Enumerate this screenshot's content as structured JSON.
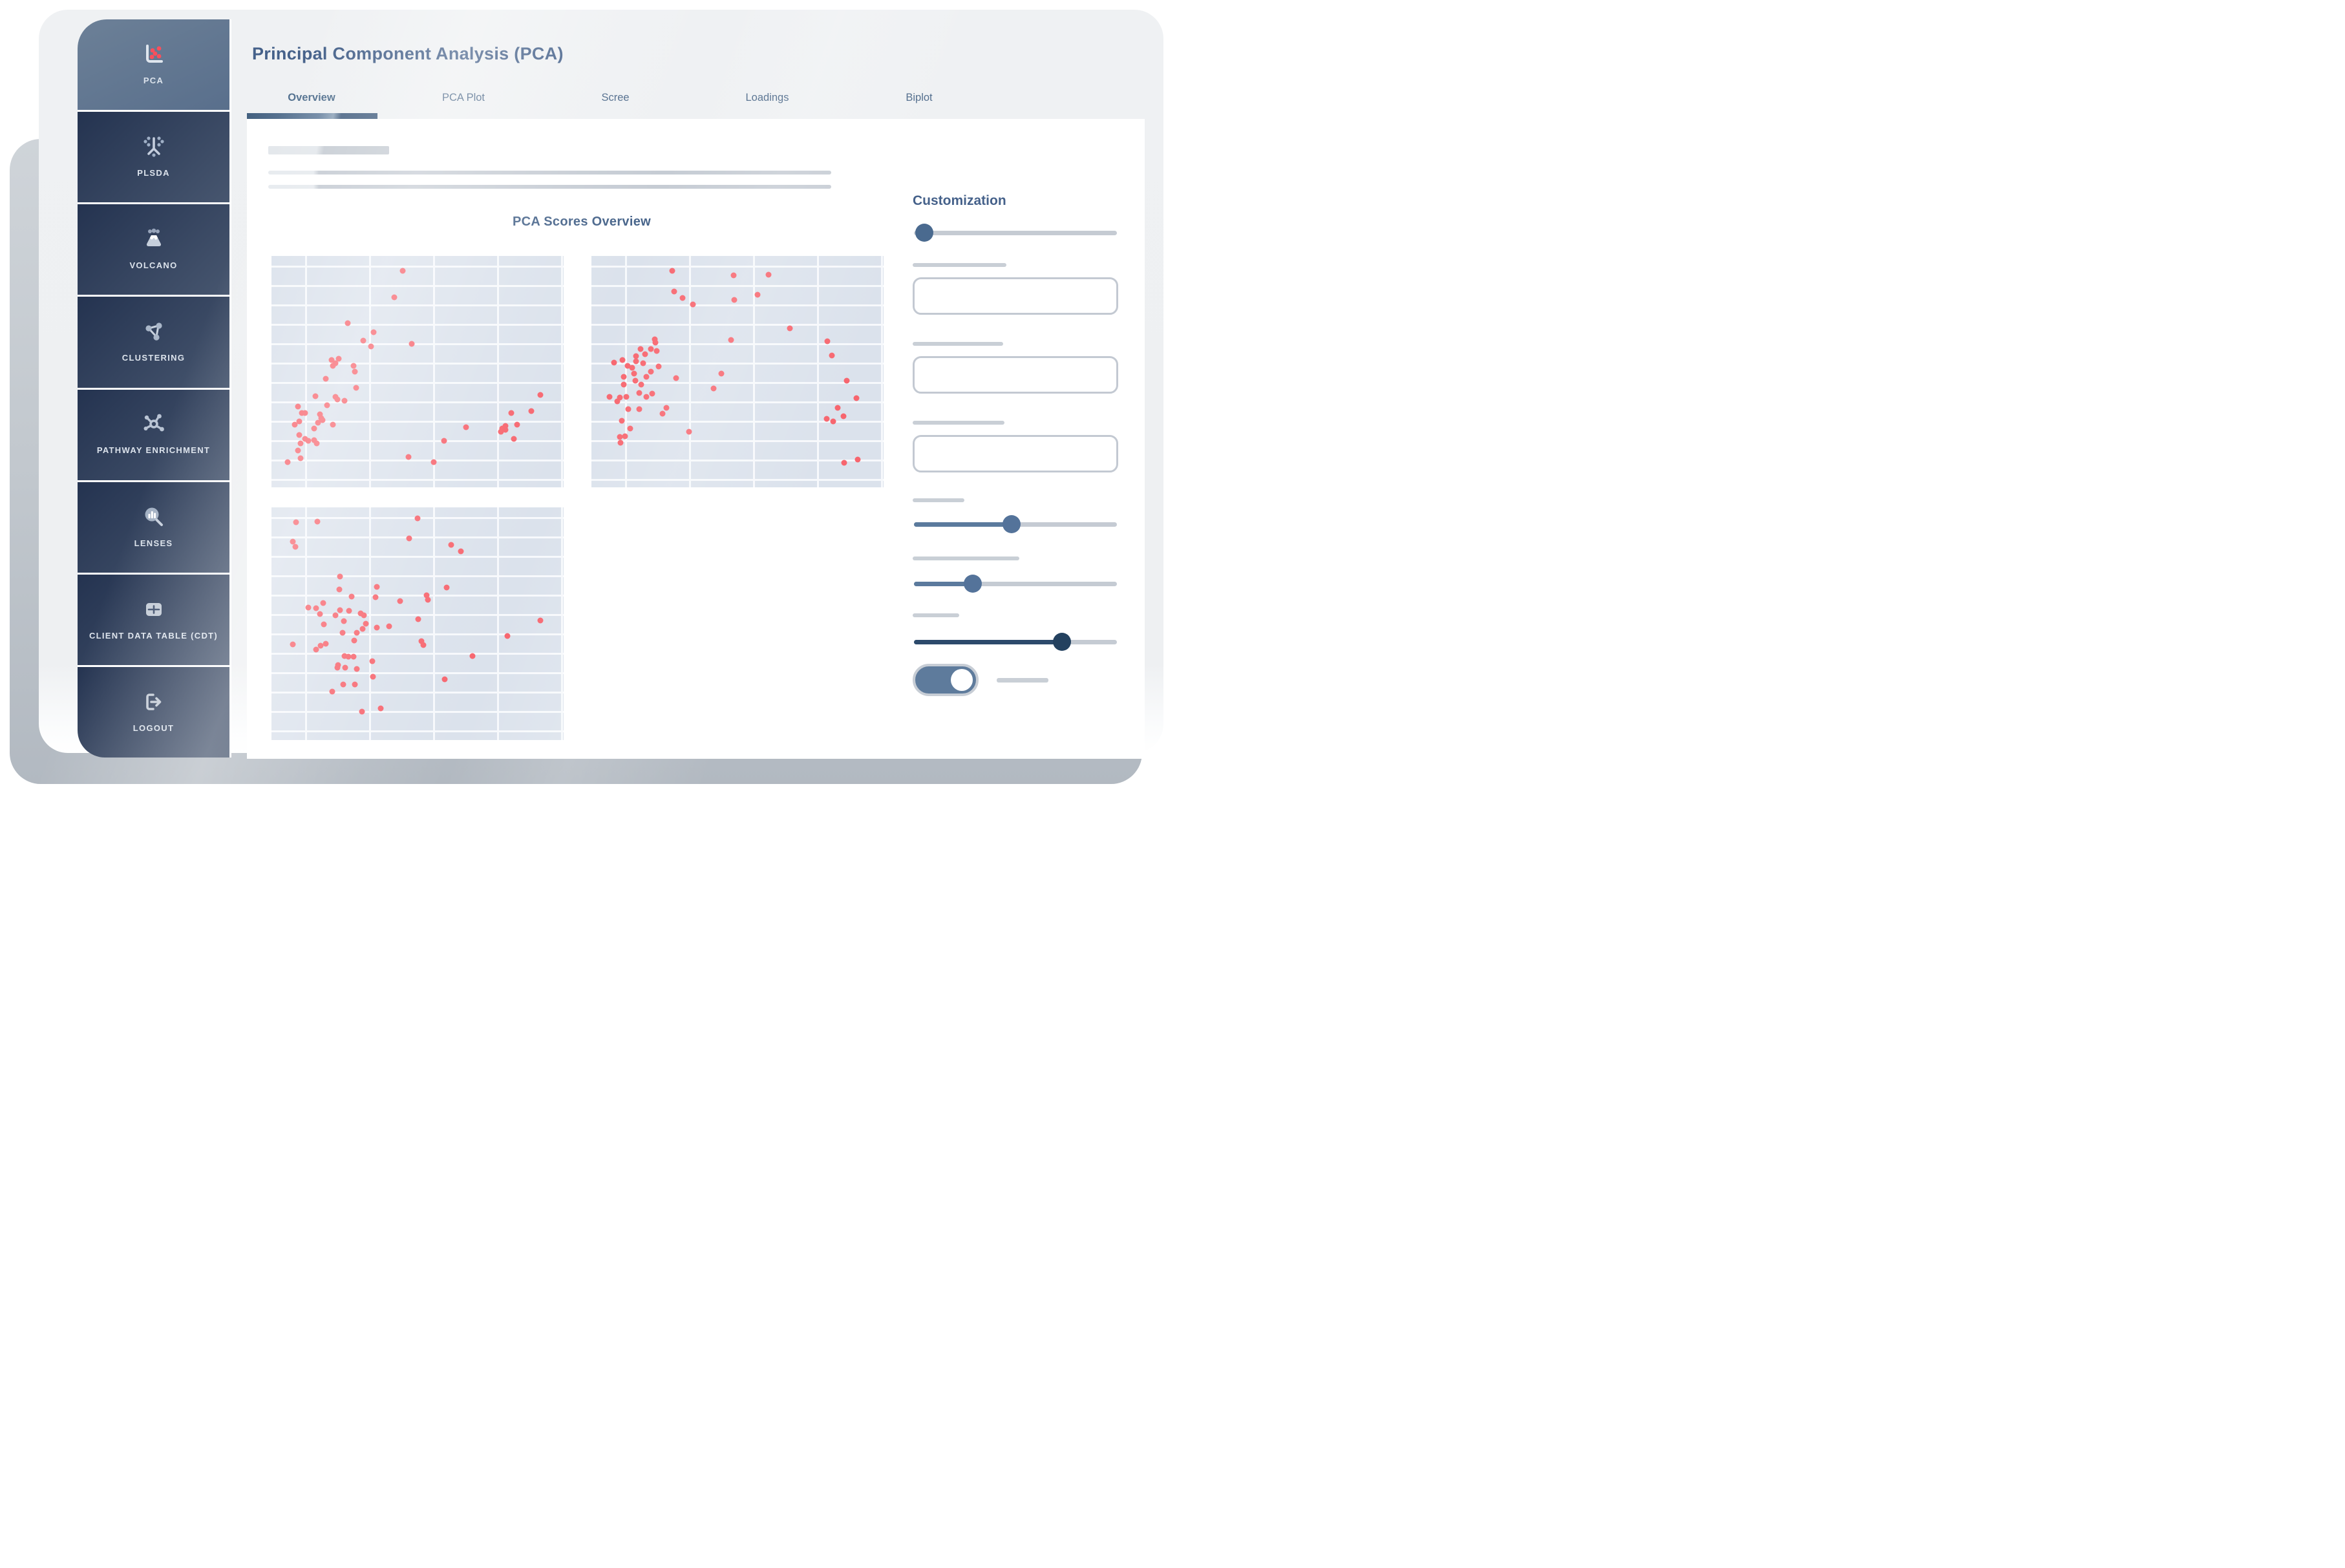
{
  "header": {
    "title": "Principal Component Analysis (PCA)",
    "tabs": [
      {
        "label": "Overview",
        "active": true
      },
      {
        "label": "PCA Plot",
        "active": false
      },
      {
        "label": "Scree",
        "active": false
      },
      {
        "label": "Loadings",
        "active": false
      },
      {
        "label": "Biplot",
        "active": false
      }
    ]
  },
  "sidebar": {
    "items": [
      {
        "label": "PCA",
        "icon": "scatter-chart-icon",
        "active": true
      },
      {
        "label": "PLSDA",
        "icon": "branch-icon",
        "active": false
      },
      {
        "label": "VOLCANO",
        "icon": "volcano-icon",
        "active": false
      },
      {
        "label": "CLUSTERING",
        "icon": "cluster-nodes-icon",
        "active": false
      },
      {
        "label": "PATHWAY ENRICHMENT",
        "icon": "network-hub-icon",
        "active": false
      },
      {
        "label": "LENSES",
        "icon": "magnifier-chart-icon",
        "active": false
      },
      {
        "label": "CLIENT DATA TABLE (CDT)",
        "icon": "table-icon",
        "active": false
      },
      {
        "label": "LOGOUT",
        "icon": "logout-icon",
        "active": false
      }
    ]
  },
  "main": {
    "scores_title": "PCA Scores Overview"
  },
  "customization": {
    "title": "Customization",
    "sliders": [
      {
        "value_pct": 5,
        "fill": "none",
        "handle": "#4a6a8f"
      },
      {
        "value_pct": 48,
        "fill": "#5b7a9d",
        "handle": "#54739a"
      },
      {
        "value_pct": 29,
        "fill": "#5b7a9d",
        "handle": "#54739a"
      },
      {
        "value_pct": 73,
        "fill": "#2c4a6b",
        "handle": "#24415f"
      }
    ],
    "inputs": [
      {
        "value": "",
        "placeholder": ""
      },
      {
        "value": "",
        "placeholder": ""
      },
      {
        "value": "",
        "placeholder": ""
      }
    ],
    "toggle": {
      "on": true
    }
  },
  "colors": {
    "accent_heading": "#45618a",
    "sidebar_active": "#5d7390",
    "sidebar_dark": "#26344f",
    "point_red": "#f7656e",
    "icon_red": "#fb4f5b",
    "slider_slate": "#5b7a9d",
    "slider_navy": "#24415f",
    "track_gray": "#c5cbd3",
    "plot_background": "#dbe2ec"
  },
  "chart_data": [
    {
      "type": "scatter",
      "title": "",
      "xlabel": "",
      "ylabel": "",
      "x_range": [
        0,
        100
      ],
      "y_range": [
        0,
        100
      ],
      "grid": true,
      "legend": "none",
      "origin": "bottom-left (values are % of plot area)",
      "point_color": "#f7656e",
      "points": [
        [
          45,
          93.5
        ],
        [
          42,
          82
        ],
        [
          26,
          71
        ],
        [
          35,
          67
        ],
        [
          31.5,
          63.5
        ],
        [
          34,
          61
        ],
        [
          48,
          62
        ],
        [
          20.5,
          55
        ],
        [
          22,
          53.5
        ],
        [
          23,
          55.5
        ],
        [
          21,
          52.5
        ],
        [
          28,
          52.5
        ],
        [
          28.5,
          50
        ],
        [
          18.5,
          47
        ],
        [
          29,
          43
        ],
        [
          15,
          39.5
        ],
        [
          22,
          39
        ],
        [
          22.5,
          38
        ],
        [
          25,
          37.5
        ],
        [
          9,
          35
        ],
        [
          19,
          35.5
        ],
        [
          10.5,
          32
        ],
        [
          11.5,
          32
        ],
        [
          16.5,
          31.5
        ],
        [
          17,
          30
        ],
        [
          17.5,
          29
        ],
        [
          16,
          28
        ],
        [
          8,
          27
        ],
        [
          9.5,
          28.5
        ],
        [
          14.5,
          25.5
        ],
        [
          21,
          27
        ],
        [
          9.5,
          22.5
        ],
        [
          11.5,
          21
        ],
        [
          12.5,
          20
        ],
        [
          10,
          19
        ],
        [
          14.5,
          20.5
        ],
        [
          15.5,
          19
        ],
        [
          9,
          16
        ],
        [
          10,
          12.5
        ],
        [
          5.5,
          11
        ],
        [
          47,
          13
        ],
        [
          55.5,
          11
        ],
        [
          59,
          20
        ],
        [
          66.5,
          26
        ],
        [
          79,
          25.5
        ],
        [
          80,
          25
        ],
        [
          78.5,
          24
        ],
        [
          80,
          26.5
        ],
        [
          82,
          32
        ],
        [
          84,
          27
        ],
        [
          89,
          33
        ],
        [
          92,
          40
        ],
        [
          83,
          21
        ]
      ]
    },
    {
      "type": "scatter",
      "title": "",
      "xlabel": "",
      "ylabel": "",
      "x_range": [
        0,
        100
      ],
      "y_range": [
        0,
        100
      ],
      "grid": true,
      "legend": "none",
      "origin": "bottom-left (values are % of plot area)",
      "point_color": "#f7656e",
      "points": [
        [
          27.6,
          93.5
        ],
        [
          48.6,
          91.7
        ],
        [
          60.6,
          92
        ],
        [
          28.3,
          84.6
        ],
        [
          31.3,
          81.9
        ],
        [
          56.9,
          83.3
        ],
        [
          48.8,
          81.1
        ],
        [
          34.7,
          79
        ],
        [
          68,
          68.7
        ],
        [
          47.7,
          63.7
        ],
        [
          80.7,
          63.2
        ],
        [
          21.7,
          64
        ],
        [
          21.9,
          62.7
        ],
        [
          16.8,
          59.8
        ],
        [
          20.3,
          59.8
        ],
        [
          22.4,
          58.9
        ],
        [
          18.4,
          57.6
        ],
        [
          15.3,
          56.8
        ],
        [
          10.7,
          55.1
        ],
        [
          15.3,
          54.6
        ],
        [
          7.7,
          53.9
        ],
        [
          12.3,
          52.4
        ],
        [
          14,
          51.8
        ],
        [
          17.6,
          53.7
        ],
        [
          82.2,
          57.1
        ],
        [
          22.9,
          52.3
        ],
        [
          20.4,
          50.1
        ],
        [
          14.6,
          49.1
        ],
        [
          11.1,
          47.9
        ],
        [
          18.7,
          47.9
        ],
        [
          15,
          46.2
        ],
        [
          28.9,
          47.3
        ],
        [
          44.5,
          49.1
        ],
        [
          87.4,
          46.2
        ],
        [
          11.1,
          44.3
        ],
        [
          17.1,
          44.3
        ],
        [
          41.8,
          42.8
        ],
        [
          16.3,
          40.7
        ],
        [
          20.9,
          40.4
        ],
        [
          6.2,
          39.1
        ],
        [
          9.7,
          38.7
        ],
        [
          12,
          39.1
        ],
        [
          18.9,
          39
        ],
        [
          8.8,
          37.1
        ],
        [
          90.7,
          38.6
        ],
        [
          12.7,
          33.9
        ],
        [
          16.3,
          33.8
        ],
        [
          25.7,
          34.4
        ],
        [
          24.4,
          31.9
        ],
        [
          84.2,
          34.3
        ],
        [
          86.2,
          30.7
        ],
        [
          10.4,
          28.9
        ],
        [
          80.6,
          29.7
        ],
        [
          82.7,
          28.6
        ],
        [
          13.2,
          25.3
        ],
        [
          33.5,
          23.9
        ],
        [
          9.8,
          21.8
        ],
        [
          11.5,
          22.2
        ],
        [
          10,
          19.2
        ],
        [
          91.2,
          12.1
        ],
        [
          86.4,
          10.5
        ]
      ]
    },
    {
      "type": "scatter",
      "title": "",
      "xlabel": "",
      "ylabel": "",
      "x_range": [
        0,
        100
      ],
      "y_range": [
        0,
        100
      ],
      "grid": true,
      "legend": "none",
      "origin": "bottom-left (values are % of plot area)",
      "point_color": "#f7656e",
      "points": [
        [
          50,
          95.3
        ],
        [
          8.4,
          93.7
        ],
        [
          15.6,
          93.8
        ],
        [
          47.2,
          86.6
        ],
        [
          7.3,
          85.2
        ],
        [
          8.1,
          83.1
        ],
        [
          61.6,
          84
        ],
        [
          64.8,
          81.1
        ],
        [
          23.5,
          70.4
        ],
        [
          36,
          65.7
        ],
        [
          23.2,
          64.7
        ],
        [
          60,
          65.6
        ],
        [
          27.5,
          61.6
        ],
        [
          35.6,
          61.4
        ],
        [
          53,
          62.1
        ],
        [
          53.6,
          60.3
        ],
        [
          44.1,
          59.6
        ],
        [
          17.6,
          58.8
        ],
        [
          12.7,
          57
        ],
        [
          15.3,
          56.7
        ],
        [
          23.4,
          55.9
        ],
        [
          26.6,
          55.5
        ],
        [
          16.6,
          54.3
        ],
        [
          21.8,
          53.6
        ],
        [
          30.5,
          54.4
        ],
        [
          31.7,
          53.6
        ],
        [
          24.7,
          51.2
        ],
        [
          50.3,
          51.9
        ],
        [
          92.1,
          51.3
        ],
        [
          18,
          49.8
        ],
        [
          32.4,
          50
        ],
        [
          36,
          48.2
        ],
        [
          40.3,
          48.9
        ],
        [
          31.1,
          47.8
        ],
        [
          24.3,
          46.1
        ],
        [
          29.2,
          46.2
        ],
        [
          80.7,
          44.8
        ],
        [
          28.3,
          42.8
        ],
        [
          51.4,
          42.4
        ],
        [
          51.9,
          40.8
        ],
        [
          7.3,
          41.1
        ],
        [
          16.8,
          40.6
        ],
        [
          18.6,
          41.3
        ],
        [
          15.2,
          38.8
        ],
        [
          24.9,
          36.1
        ],
        [
          26.4,
          35.7
        ],
        [
          28.1,
          35.7
        ],
        [
          68.9,
          36.2
        ],
        [
          34.6,
          33.8
        ],
        [
          22.5,
          31.2
        ],
        [
          22.7,
          32.3
        ],
        [
          25.2,
          31.1
        ],
        [
          29.2,
          30.6
        ],
        [
          34.7,
          27.1
        ],
        [
          59.4,
          26
        ],
        [
          24.6,
          23.9
        ],
        [
          28.6,
          24
        ],
        [
          20.9,
          20.9
        ],
        [
          37.4,
          13.5
        ],
        [
          31,
          12.2
        ]
      ]
    }
  ]
}
